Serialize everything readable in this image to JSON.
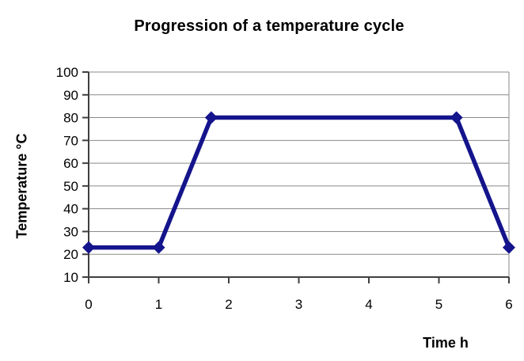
{
  "chart_data": {
    "type": "line",
    "title": "Progression of a temperature cycle",
    "xlabel": "Time h",
    "ylabel": "Temperature °C",
    "x": [
      0,
      1,
      1.75,
      5.25,
      6
    ],
    "y": [
      23,
      23,
      80,
      80,
      23
    ],
    "xlim": [
      0,
      6
    ],
    "ylim": [
      10,
      100
    ],
    "xticks": [
      0,
      1,
      2,
      3,
      4,
      5,
      6
    ],
    "yticks": [
      10,
      20,
      30,
      40,
      50,
      60,
      70,
      80,
      90,
      100
    ],
    "grid": "horizontal",
    "legend": "none",
    "marker": "diamond",
    "colors": {
      "line": "#14148C",
      "marker": "#14148C",
      "gridline": "#8a8a8a",
      "axis": "#404040",
      "border": "#8a8a8a",
      "background": "#ffffff"
    }
  }
}
